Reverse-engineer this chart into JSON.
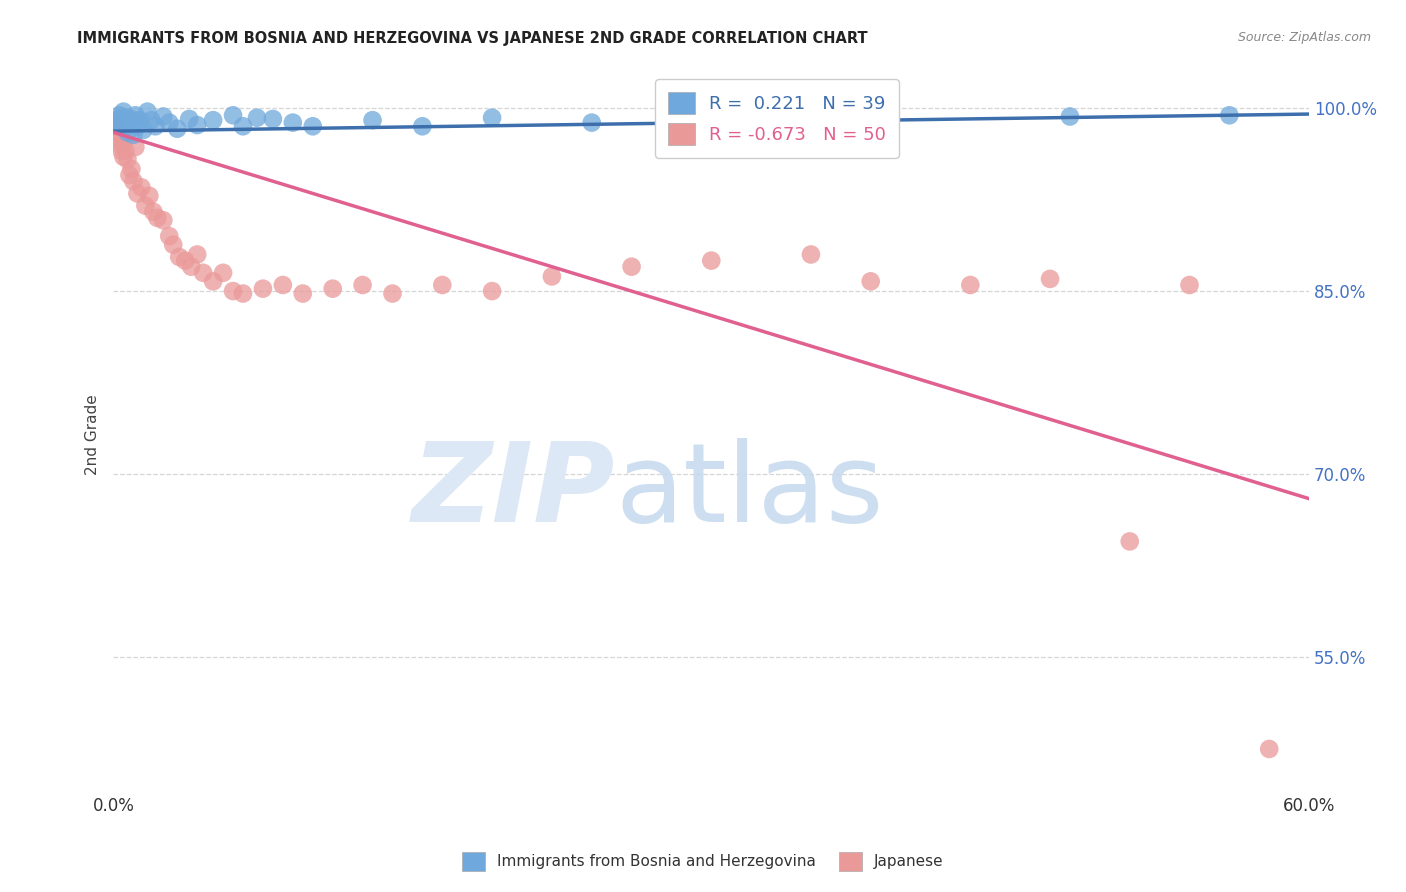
{
  "title": "IMMIGRANTS FROM BOSNIA AND HERZEGOVINA VS JAPANESE 2ND GRADE CORRELATION CHART",
  "source": "Source: ZipAtlas.com",
  "ylabel": "2nd Grade",
  "xlim": [
    0.0,
    0.6
  ],
  "ylim": [
    0.44,
    1.025
  ],
  "xticks": [
    0.0,
    0.1,
    0.2,
    0.3,
    0.4,
    0.5,
    0.6
  ],
  "xticklabels": [
    "0.0%",
    "",
    "",
    "",
    "",
    "",
    "60.0%"
  ],
  "yticks": [
    0.55,
    0.7,
    0.85,
    1.0
  ],
  "yticklabels": [
    "55.0%",
    "70.0%",
    "85.0%",
    "100.0%"
  ],
  "legend1_label": "Immigrants from Bosnia and Herzegovina",
  "legend2_label": "Japanese",
  "series1_color": "#6fa8dc",
  "series2_color": "#ea9999",
  "line1_color": "#3d6fad",
  "line2_color": "#e06090",
  "r1": 0.221,
  "n1": 39,
  "r2": -0.673,
  "n2": 50,
  "background_color": "#ffffff",
  "grid_color": "#cccccc",
  "right_tick_color": "#4472c4",
  "series1_x": [
    0.001,
    0.002,
    0.003,
    0.003,
    0.004,
    0.005,
    0.005,
    0.006,
    0.007,
    0.008,
    0.009,
    0.01,
    0.011,
    0.012,
    0.013,
    0.015,
    0.017,
    0.019,
    0.021,
    0.025,
    0.028,
    0.032,
    0.038,
    0.042,
    0.05,
    0.06,
    0.065,
    0.072,
    0.08,
    0.09,
    0.1,
    0.13,
    0.155,
    0.19,
    0.24,
    0.31,
    0.38,
    0.48,
    0.56
  ],
  "series1_y": [
    0.989,
    0.986,
    0.991,
    0.994,
    0.988,
    0.984,
    0.997,
    0.992,
    0.98,
    0.986,
    0.991,
    0.978,
    0.994,
    0.985,
    0.99,
    0.982,
    0.997,
    0.99,
    0.985,
    0.993,
    0.988,
    0.983,
    0.991,
    0.986,
    0.99,
    0.994,
    0.985,
    0.992,
    0.991,
    0.988,
    0.985,
    0.99,
    0.985,
    0.992,
    0.988,
    0.99,
    0.985,
    0.993,
    0.994
  ],
  "series2_x": [
    0.001,
    0.002,
    0.002,
    0.003,
    0.004,
    0.004,
    0.005,
    0.005,
    0.006,
    0.007,
    0.008,
    0.009,
    0.01,
    0.011,
    0.012,
    0.014,
    0.016,
    0.018,
    0.02,
    0.022,
    0.025,
    0.028,
    0.03,
    0.033,
    0.036,
    0.039,
    0.042,
    0.045,
    0.05,
    0.055,
    0.06,
    0.065,
    0.075,
    0.085,
    0.095,
    0.11,
    0.125,
    0.14,
    0.165,
    0.19,
    0.22,
    0.26,
    0.3,
    0.35,
    0.38,
    0.43,
    0.47,
    0.51,
    0.54,
    0.58
  ],
  "series2_y": [
    0.984,
    0.975,
    0.99,
    0.97,
    0.965,
    0.978,
    0.96,
    0.972,
    0.965,
    0.958,
    0.945,
    0.95,
    0.94,
    0.968,
    0.93,
    0.935,
    0.92,
    0.928,
    0.915,
    0.91,
    0.908,
    0.895,
    0.888,
    0.878,
    0.875,
    0.87,
    0.88,
    0.865,
    0.858,
    0.865,
    0.85,
    0.848,
    0.852,
    0.855,
    0.848,
    0.852,
    0.855,
    0.848,
    0.855,
    0.85,
    0.862,
    0.87,
    0.875,
    0.88,
    0.858,
    0.855,
    0.86,
    0.645,
    0.855,
    0.475
  ],
  "line1_x": [
    0.0,
    0.6
  ],
  "line1_y": [
    0.981,
    0.995
  ],
  "line2_x": [
    0.0,
    0.6
  ],
  "line2_y": [
    0.98,
    0.68
  ]
}
